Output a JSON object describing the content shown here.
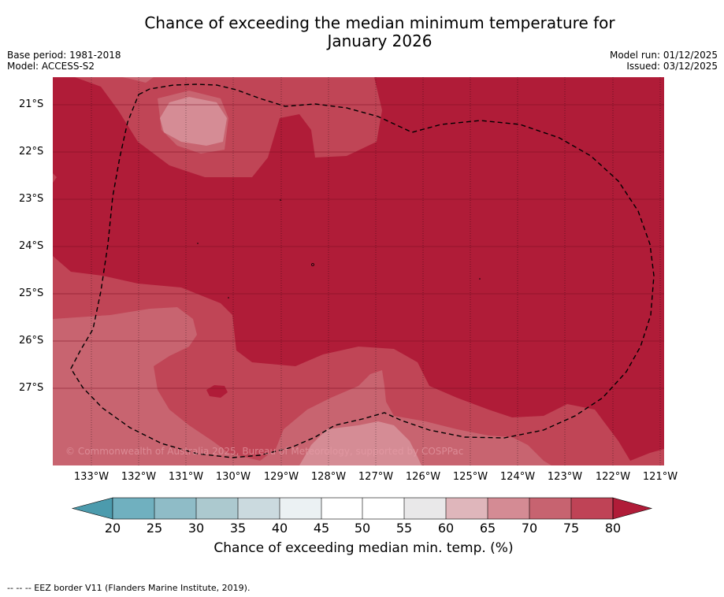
{
  "title_line1": "Chance of exceeding the median minimum temperature for",
  "title_line2": "January 2026",
  "base_period": "Base period: 1981-2018",
  "model": "Model: ACCESS-S2",
  "model_run": "Model run: 01/12/2025",
  "issued": "Issued: 03/12/2025",
  "lat_labels": [
    "21°S",
    "22°S",
    "23°S",
    "24°S",
    "25°S",
    "26°S",
    "27°S"
  ],
  "lon_labels": [
    "133°W",
    "132°W",
    "131°W",
    "130°W",
    "129°W",
    "128°W",
    "127°W",
    "126°W",
    "125°W",
    "124°W",
    "123°W",
    "122°W",
    "121°W"
  ],
  "copyright": "© Commonwealth of Australia 2025, Bureau of Meteorology, supported by COSPPac",
  "colorbar": {
    "ticks": [
      "20",
      "25",
      "30",
      "35",
      "40",
      "45",
      "50",
      "55",
      "60",
      "65",
      "70",
      "75",
      "80"
    ],
    "label": "Chance of exceeding median min. temp. (%)",
    "colors": [
      "#4c9bad",
      "#70b0bf",
      "#8fbcc7",
      "#acc9cf",
      "#cbdadf",
      "#ebf1f3",
      "#ffffff",
      "#ffffff",
      "#e9e8e9",
      "#dfb6bb",
      "#d48b94",
      "#c76370",
      "#bf4356",
      "#b01c38"
    ]
  },
  "footer": "--  --  -- EEZ border V11 (Flanders Marine Institute, 2019)."
}
